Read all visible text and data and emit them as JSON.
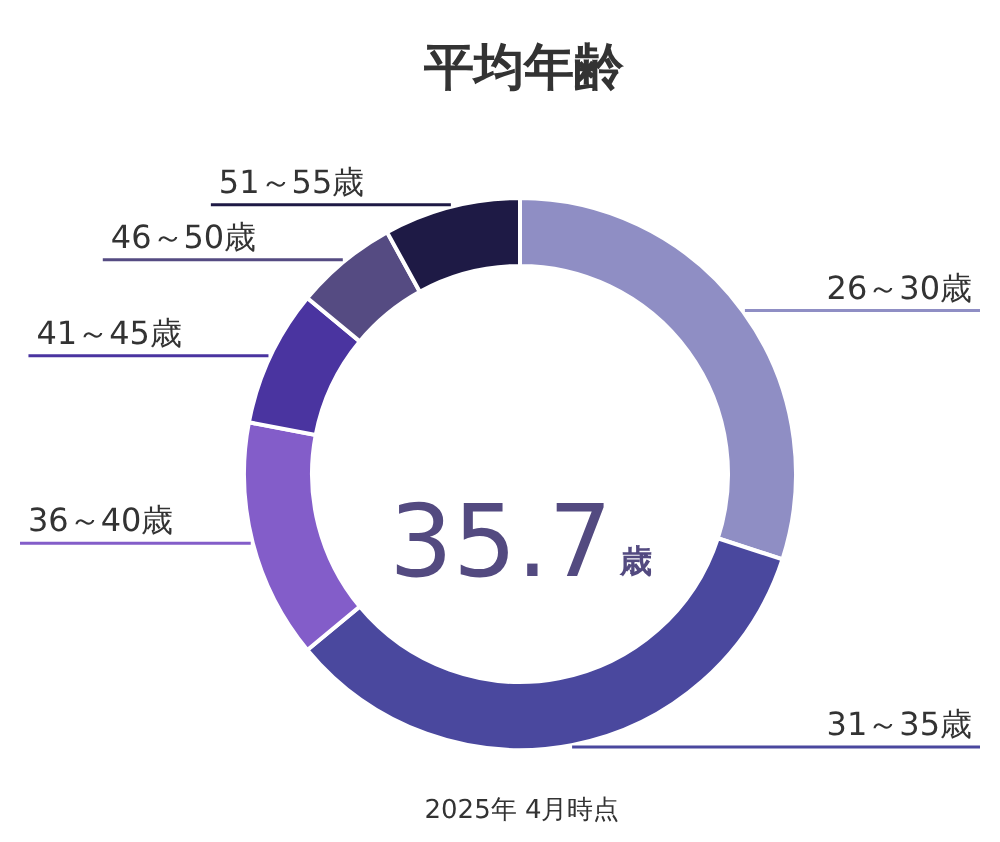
{
  "chart_data": {
    "type": "donut",
    "title": "平均年齢",
    "categories": [
      "26～30歳",
      "31～35歳",
      "36～40歳",
      "41～45歳",
      "46～50歳",
      "51～55歳"
    ],
    "values": [
      30,
      34,
      14,
      8,
      6,
      8
    ],
    "colors": [
      "#8f8ec4",
      "#4a489e",
      "#835dc9",
      "#4a34a0",
      "#554b82",
      "#1e1a45"
    ],
    "annotations": [
      "35.7",
      "歳",
      "2025年 4月時点"
    ]
  }
}
